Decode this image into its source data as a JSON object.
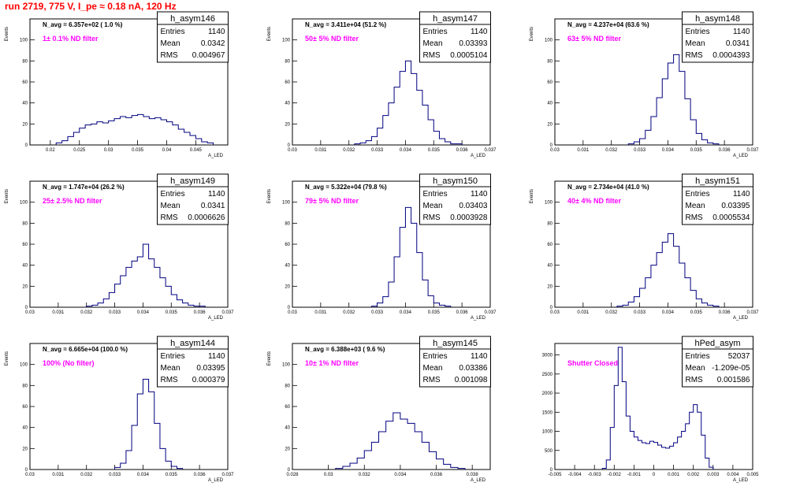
{
  "page": {
    "title": "run 2719,   775 V, I_pe ≈ 0.18 nA, 120 Hz",
    "colors": {
      "histogram": "#000080",
      "title": "#ff0000",
      "annotation": "#ff00ff"
    }
  },
  "chart_data": [
    {
      "type": "bar",
      "name": "h_asym146",
      "annotation": "N_avg = 6.357e+02 ( 1.0 %)",
      "filter": "1± 0.1% ND filter",
      "stats": [
        [
          "Entries",
          "1140"
        ],
        [
          "Mean",
          "0.0342"
        ],
        [
          "RMS",
          "0.004967"
        ]
      ],
      "xlabel": "A_LED",
      "ylabel": "Events",
      "xlim": [
        0.0165,
        0.0505
      ],
      "ylim": [
        0,
        120
      ],
      "xticks": [
        "0.02",
        "0.025",
        "0.03",
        "0.035",
        "0.04",
        "0.045"
      ],
      "xtick_values": [
        0.02,
        0.025,
        0.03,
        0.035,
        0.04,
        0.045
      ],
      "yticks": [
        0,
        20,
        40,
        60,
        80,
        100
      ],
      "x": [
        0.021,
        0.022,
        0.023,
        0.024,
        0.025,
        0.026,
        0.027,
        0.028,
        0.029,
        0.03,
        0.031,
        0.032,
        0.033,
        0.034,
        0.035,
        0.036,
        0.037,
        0.038,
        0.039,
        0.04,
        0.041,
        0.042,
        0.043,
        0.044,
        0.045,
        0.046,
        0.047
      ],
      "values": [
        2,
        4,
        8,
        12,
        16,
        19,
        20,
        22,
        21,
        23,
        25,
        27,
        26,
        28,
        29,
        27,
        25,
        26,
        24,
        22,
        19,
        15,
        12,
        9,
        6,
        3,
        2
      ]
    },
    {
      "type": "bar",
      "name": "h_asym147",
      "annotation": "N_avg = 3.411e+04 (51.2 %)",
      "filter": "50± 5% ND filter",
      "stats": [
        [
          "Entries",
          "1140"
        ],
        [
          "Mean",
          "0.03393"
        ],
        [
          "RMS",
          "0.0005104"
        ]
      ],
      "xlabel": "A_LED",
      "ylabel": "Events",
      "xlim": [
        0.03,
        0.037
      ],
      "ylim": [
        0,
        120
      ],
      "xticks": [
        "0.03",
        "0.031",
        "0.032",
        "0.033",
        "0.034",
        "0.035",
        "0.036",
        "0.037"
      ],
      "xtick_values": [
        0.03,
        0.031,
        0.032,
        0.033,
        0.034,
        0.035,
        0.036,
        0.037
      ],
      "yticks": [
        0,
        20,
        40,
        60,
        80,
        100
      ],
      "x": [
        0.0322,
        0.0324,
        0.0326,
        0.0328,
        0.033,
        0.0332,
        0.0334,
        0.0336,
        0.0338,
        0.034,
        0.0342,
        0.0344,
        0.0346,
        0.0348,
        0.035,
        0.0352,
        0.0354,
        0.0356,
        0.0358
      ],
      "values": [
        1,
        2,
        4,
        8,
        16,
        28,
        40,
        55,
        70,
        80,
        68,
        52,
        38,
        24,
        13,
        6,
        3,
        1,
        1
      ]
    },
    {
      "type": "bar",
      "name": "h_asym148",
      "annotation": "N_avg = 4.237e+04 (63.6 %)",
      "filter": "63± 5% ND filter",
      "stats": [
        [
          "Entries",
          "1140"
        ],
        [
          "Mean",
          "0.0341"
        ],
        [
          "RMS",
          "0.0004393"
        ]
      ],
      "xlabel": "A_LED",
      "ylabel": "Events",
      "xlim": [
        0.03,
        0.037
      ],
      "ylim": [
        0,
        120
      ],
      "xticks": [
        "0.03",
        "0.031",
        "0.032",
        "0.033",
        "0.034",
        "0.035",
        "0.036",
        "0.037"
      ],
      "xtick_values": [
        0.03,
        0.031,
        0.032,
        0.033,
        0.034,
        0.035,
        0.036,
        0.037
      ],
      "yticks": [
        0,
        20,
        40,
        60,
        80,
        100
      ],
      "x": [
        0.0326,
        0.0328,
        0.033,
        0.0332,
        0.0334,
        0.0336,
        0.0338,
        0.034,
        0.0342,
        0.0344,
        0.0346,
        0.0348,
        0.035,
        0.0352,
        0.0354,
        0.0356
      ],
      "values": [
        1,
        3,
        6,
        14,
        27,
        45,
        63,
        78,
        86,
        70,
        44,
        24,
        11,
        5,
        2,
        1
      ]
    },
    {
      "type": "bar",
      "name": "h_asym149",
      "annotation": "N_avg = 1.747e+04 (26.2 %)",
      "filter": "25± 2.5% ND filter",
      "stats": [
        [
          "Entries",
          "1140"
        ],
        [
          "Mean",
          "0.0341"
        ],
        [
          "RMS",
          "0.0006626"
        ]
      ],
      "xlabel": "A_LED",
      "ylabel": "Events",
      "xlim": [
        0.03,
        0.037
      ],
      "ylim": [
        0,
        120
      ],
      "xticks": [
        "0.03",
        "0.031",
        "0.032",
        "0.033",
        "0.034",
        "0.035",
        "0.036",
        "0.037"
      ],
      "xtick_values": [
        0.03,
        0.031,
        0.032,
        0.033,
        0.034,
        0.035,
        0.036,
        0.037
      ],
      "yticks": [
        0,
        20,
        40,
        60,
        80,
        100
      ],
      "x": [
        0.032,
        0.0322,
        0.0324,
        0.0326,
        0.0328,
        0.033,
        0.0332,
        0.0334,
        0.0336,
        0.0338,
        0.034,
        0.0342,
        0.0344,
        0.0346,
        0.0348,
        0.035,
        0.0352,
        0.0354,
        0.0356,
        0.0358,
        0.036
      ],
      "values": [
        1,
        2,
        4,
        8,
        14,
        22,
        30,
        38,
        44,
        48,
        60,
        46,
        38,
        28,
        20,
        12,
        7,
        4,
        2,
        1,
        1
      ]
    },
    {
      "type": "bar",
      "name": "h_asym150",
      "annotation": "N_avg = 5.322e+04 (79.8 %)",
      "filter": "79± 5% ND filter",
      "stats": [
        [
          "Entries",
          "1140"
        ],
        [
          "Mean",
          "0.03403"
        ],
        [
          "RMS",
          "0.0003928"
        ]
      ],
      "xlabel": "A_LED",
      "ylabel": "Events",
      "xlim": [
        0.03,
        0.037
      ],
      "ylim": [
        0,
        120
      ],
      "xticks": [
        "0.03",
        "0.031",
        "0.032",
        "0.033",
        "0.034",
        "0.035",
        "0.036",
        "0.037"
      ],
      "xtick_values": [
        0.03,
        0.031,
        0.032,
        0.033,
        0.034,
        0.035,
        0.036,
        0.037
      ],
      "yticks": [
        0,
        20,
        40,
        60,
        80,
        100
      ],
      "x": [
        0.0328,
        0.033,
        0.0332,
        0.0334,
        0.0336,
        0.0338,
        0.034,
        0.0342,
        0.0344,
        0.0346,
        0.0348,
        0.035,
        0.0352,
        0.0354
      ],
      "values": [
        1,
        4,
        10,
        24,
        48,
        76,
        95,
        80,
        52,
        26,
        11,
        4,
        2,
        1
      ]
    },
    {
      "type": "bar",
      "name": "h_asym151",
      "annotation": "N_avg = 2.734e+04 (41.0 %)",
      "filter": "40± 4% ND filter",
      "stats": [
        [
          "Entries",
          "1140"
        ],
        [
          "Mean",
          "0.03395"
        ],
        [
          "RMS",
          "0.0005534"
        ]
      ],
      "xlabel": "A_LED",
      "ylabel": "Events",
      "xlim": [
        0.03,
        0.037
      ],
      "ylim": [
        0,
        120
      ],
      "xticks": [
        "0.03",
        "0.031",
        "0.032",
        "0.033",
        "0.034",
        "0.035",
        "0.036",
        "0.037"
      ],
      "xtick_values": [
        0.03,
        0.031,
        0.032,
        0.033,
        0.034,
        0.035,
        0.036,
        0.037
      ],
      "yticks": [
        0,
        20,
        40,
        60,
        80,
        100
      ],
      "x": [
        0.0322,
        0.0324,
        0.0326,
        0.0328,
        0.033,
        0.0332,
        0.0334,
        0.0336,
        0.0338,
        0.034,
        0.0342,
        0.0344,
        0.0346,
        0.0348,
        0.035,
        0.0352,
        0.0354,
        0.0356
      ],
      "values": [
        1,
        2,
        5,
        10,
        18,
        28,
        40,
        52,
        62,
        70,
        58,
        42,
        28,
        16,
        8,
        4,
        2,
        1
      ]
    },
    {
      "type": "bar",
      "name": "h_asym144",
      "annotation": "N_avg = 6.665e+04 (100.0 %)",
      "filter": "100% (No filter)",
      "stats": [
        [
          "Entries",
          "1140"
        ],
        [
          "Mean",
          "0.03395"
        ],
        [
          "RMS",
          "0.000379"
        ]
      ],
      "xlabel": "A_LED",
      "ylabel": "Events",
      "xlim": [
        0.03,
        0.037
      ],
      "ylim": [
        0,
        120
      ],
      "xticks": [
        "0.03",
        "0.031",
        "0.032",
        "0.033",
        "0.034",
        "0.035",
        "0.036",
        "0.037"
      ],
      "xtick_values": [
        0.03,
        0.031,
        0.032,
        0.033,
        0.034,
        0.035,
        0.036,
        0.037
      ],
      "yticks": [
        0,
        20,
        40,
        60,
        80,
        100
      ],
      "x": [
        0.033,
        0.0332,
        0.0334,
        0.0336,
        0.0338,
        0.034,
        0.0342,
        0.0344,
        0.0346,
        0.0348,
        0.035,
        0.0352
      ],
      "values": [
        2,
        6,
        18,
        42,
        72,
        86,
        74,
        44,
        20,
        8,
        3,
        1
      ]
    },
    {
      "type": "bar",
      "name": "h_asym145",
      "annotation": "N_avg = 6.388e+03 ( 9.6 %)",
      "filter": "10± 1% ND filter",
      "stats": [
        [
          "Entries",
          "1140"
        ],
        [
          "Mean",
          "0.03386"
        ],
        [
          "RMS",
          "0.001098"
        ]
      ],
      "xlabel": "A_LED",
      "ylabel": "Events",
      "xlim": [
        0.028,
        0.039
      ],
      "ylim": [
        0,
        120
      ],
      "xticks": [
        "0.028",
        "0.03",
        "0.032",
        "0.034",
        "0.036",
        "0.038"
      ],
      "xtick_values": [
        0.028,
        0.03,
        0.032,
        0.034,
        0.036,
        0.038
      ],
      "yticks": [
        0,
        20,
        40,
        60,
        80,
        100
      ],
      "x": [
        0.0304,
        0.0308,
        0.0312,
        0.0316,
        0.032,
        0.0324,
        0.0328,
        0.0332,
        0.0336,
        0.034,
        0.0344,
        0.0348,
        0.0352,
        0.0356,
        0.036,
        0.0364,
        0.0368,
        0.0372
      ],
      "values": [
        1,
        3,
        6,
        11,
        18,
        26,
        36,
        46,
        54,
        48,
        44,
        36,
        26,
        17,
        10,
        5,
        2,
        1
      ]
    },
    {
      "type": "bar",
      "name": "hPed_asym",
      "annotation": "",
      "filter": "Shutter Closed",
      "stats": [
        [
          "Entries",
          "52037"
        ],
        [
          "Mean",
          "-1.209e-05"
        ],
        [
          "RMS",
          "0.001586"
        ]
      ],
      "xlabel": "A_LED",
      "ylabel": "",
      "xlim": [
        -0.005,
        0.005
      ],
      "ylim": [
        0,
        3300
      ],
      "xticks": [
        "-0.005",
        "-0.004",
        "-0.003",
        "-0.002",
        "-0.001",
        "0",
        "0.001",
        "0.002",
        "0.003",
        "0.004",
        "0.005"
      ],
      "xtick_values": [
        -0.005,
        -0.004,
        -0.003,
        -0.002,
        -0.001,
        0,
        0.001,
        0.002,
        0.003,
        0.004,
        0.005
      ],
      "yticks": [
        0,
        500,
        1000,
        1500,
        2000,
        2500,
        3000
      ],
      "x": [
        -0.0026,
        -0.0024,
        -0.0022,
        -0.002,
        -0.0018,
        -0.0016,
        -0.0014,
        -0.0012,
        -0.001,
        -0.0008,
        -0.0006,
        -0.0004,
        -0.0002,
        0.0,
        0.0002,
        0.0004,
        0.0006,
        0.0008,
        0.001,
        0.0012,
        0.0014,
        0.0016,
        0.0018,
        0.002,
        0.0022,
        0.0024,
        0.0026,
        0.0028
      ],
      "values": [
        30,
        250,
        1100,
        2200,
        3200,
        2300,
        1400,
        1000,
        850,
        760,
        700,
        680,
        740,
        710,
        640,
        580,
        560,
        610,
        700,
        850,
        1000,
        1200,
        1500,
        1700,
        1500,
        900,
        300,
        60
      ]
    }
  ]
}
